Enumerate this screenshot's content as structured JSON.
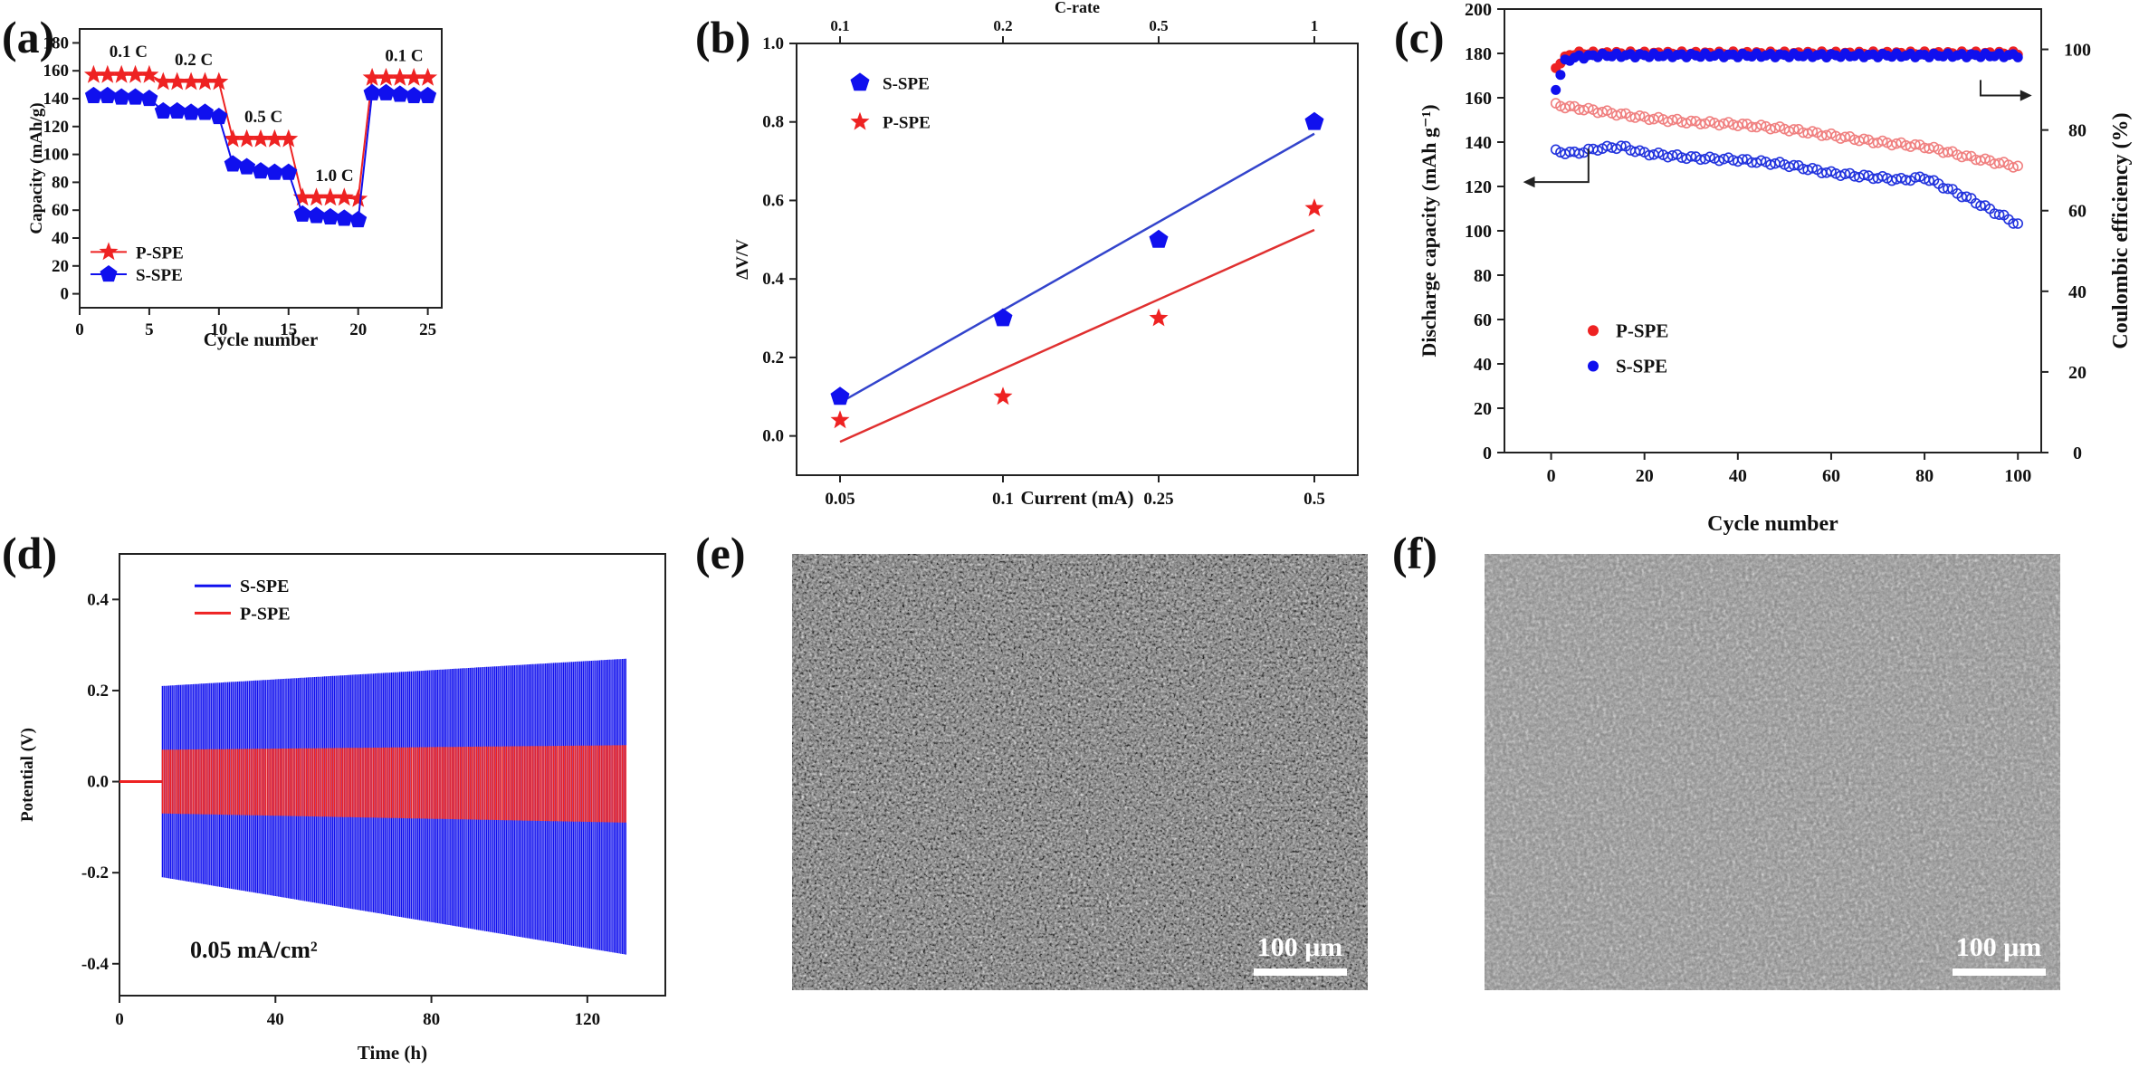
{
  "colors": {
    "red": "#ee2222",
    "blue": "#1010ee",
    "red_hollow": "#f08080",
    "blue_hollow": "#2233dd",
    "red_line": "#e03030",
    "blue_line": "#3344cc"
  },
  "panels": {
    "a": {
      "label": "(a)"
    },
    "b": {
      "label": "(b)"
    },
    "c": {
      "label": "(c)"
    },
    "d": {
      "label": "(d)"
    },
    "e": {
      "label": "(e)",
      "scale_bar": "100 μm"
    },
    "f": {
      "label": "(f)",
      "scale_bar": "100 μm"
    }
  },
  "chart_data": [
    {
      "id": "a",
      "type": "scatter",
      "xlabel": "Cycle number",
      "ylabel": "Capacity (mAh/g)",
      "xlim": [
        0,
        26
      ],
      "ylim": [
        -10,
        190
      ],
      "xticks": [
        0,
        5,
        10,
        15,
        20,
        25
      ],
      "yticks": [
        0,
        20,
        40,
        60,
        80,
        100,
        120,
        140,
        160,
        180
      ],
      "annotations": [
        "0.1 C",
        "0.2 C",
        "0.5 C",
        "1.0 C",
        "0.1 C"
      ],
      "legend": [
        "P-SPE",
        "S-SPE"
      ],
      "series": [
        {
          "name": "P-SPE",
          "marker": "star",
          "x": [
            1,
            2,
            3,
            4,
            5,
            6,
            7,
            8,
            9,
            10,
            11,
            12,
            13,
            14,
            15,
            16,
            17,
            18,
            19,
            20,
            21,
            22,
            23,
            24,
            25
          ],
          "values": [
            157,
            157,
            157,
            157,
            157,
            152,
            152,
            152,
            152,
            152,
            111,
            111,
            111,
            111,
            111,
            69,
            69,
            69,
            69,
            68,
            155,
            155,
            155,
            155,
            155
          ]
        },
        {
          "name": "S-SPE",
          "marker": "pentagon",
          "x": [
            1,
            2,
            3,
            4,
            5,
            6,
            7,
            8,
            9,
            10,
            11,
            12,
            13,
            14,
            15,
            16,
            17,
            18,
            19,
            20,
            21,
            22,
            23,
            24,
            25
          ],
          "values": [
            142,
            142,
            141,
            141,
            140,
            131,
            131,
            130,
            130,
            127,
            93,
            91,
            88,
            87,
            87,
            57,
            56,
            55,
            54,
            53,
            144,
            144,
            143,
            142,
            142
          ]
        }
      ]
    },
    {
      "id": "b",
      "type": "scatter",
      "xlabel": "Current (mA)",
      "ylabel": "ΔV/V",
      "x2label": "C-rate",
      "categories": [
        "0.05",
        "0.1",
        "0.25",
        "0.5"
      ],
      "x2ticks": [
        "0.1",
        "0.2",
        "0.5",
        "1"
      ],
      "ylim": [
        -0.1,
        1.0
      ],
      "yticks": [
        "0.0",
        "0.2",
        "0.4",
        "0.6",
        "0.8",
        "1.0"
      ],
      "legend": [
        "S-SPE",
        "P-SPE"
      ],
      "series": [
        {
          "name": "S-SPE",
          "marker": "pentagon",
          "values": [
            0.1,
            0.3,
            0.5,
            0.8
          ],
          "fit": [
            0.085,
            0.77
          ]
        },
        {
          "name": "P-SPE",
          "marker": "star",
          "values": [
            0.04,
            0.1,
            0.3,
            0.58
          ],
          "fit": [
            -0.015,
            0.525
          ]
        }
      ]
    },
    {
      "id": "c",
      "type": "scatter",
      "xlabel": "Cycle number",
      "ylabel": "Discharge capacity (mAh g⁻¹)",
      "y2label": "Coulombic efficiency (%)",
      "xlim": [
        -10,
        105
      ],
      "ylim": [
        0,
        200
      ],
      "y2lim": [
        0,
        110
      ],
      "xticks": [
        0,
        20,
        40,
        60,
        80,
        100
      ],
      "yticks": [
        0,
        20,
        40,
        60,
        80,
        100,
        120,
        140,
        160,
        180,
        200
      ],
      "y2ticks": [
        0,
        20,
        40,
        60,
        80,
        100
      ],
      "legend": [
        "P-SPE",
        "S-SPE"
      ],
      "capacity": {
        "P-SPE": {
          "x": [
            0,
            10,
            20,
            30,
            40,
            50,
            60,
            70,
            80,
            90,
            100
          ],
          "values": [
            157,
            154,
            151,
            149,
            148,
            146,
            143,
            140,
            138,
            133,
            129
          ]
        },
        "S-SPE": {
          "x": [
            0,
            5,
            10,
            15,
            20,
            30,
            40,
            50,
            60,
            70,
            75,
            80,
            90,
            100
          ],
          "values": [
            136,
            135,
            137,
            138,
            135,
            133,
            132,
            130,
            126,
            124,
            123,
            124,
            114,
            103
          ]
        }
      },
      "efficiency": {
        "P-SPE": {
          "x": [
            1,
            2,
            3,
            5,
            10,
            20,
            50,
            100
          ],
          "values": [
            95,
            97,
            98,
            99,
            99,
            99,
            99,
            99
          ]
        },
        "S-SPE": {
          "x": [
            1,
            2,
            3,
            5,
            10,
            20,
            50,
            100
          ],
          "values": [
            90,
            94,
            97,
            98,
            98.5,
            98.5,
            98.5,
            98.5
          ]
        }
      }
    },
    {
      "id": "d",
      "type": "line",
      "xlabel": "Time (h)",
      "ylabel": "Potential (V)",
      "xlim": [
        0,
        140
      ],
      "ylim": [
        -0.47,
        0.5
      ],
      "xticks": [
        0,
        40,
        80,
        120
      ],
      "yticks": [
        "-0.4",
        "-0.2",
        "0.0",
        "0.2",
        "0.4"
      ],
      "annotation": "0.05 mA/cm²",
      "legend": [
        "S-SPE",
        "P-SPE"
      ],
      "series": [
        {
          "name": "S-SPE",
          "start": 11,
          "end": 130,
          "upper": [
            0.21,
            0.27
          ],
          "lower": [
            -0.21,
            -0.38
          ]
        },
        {
          "name": "P-SPE",
          "start": 11,
          "end": 130,
          "upper": [
            0.07,
            0.08
          ],
          "lower": [
            -0.07,
            -0.09
          ]
        }
      ]
    }
  ]
}
